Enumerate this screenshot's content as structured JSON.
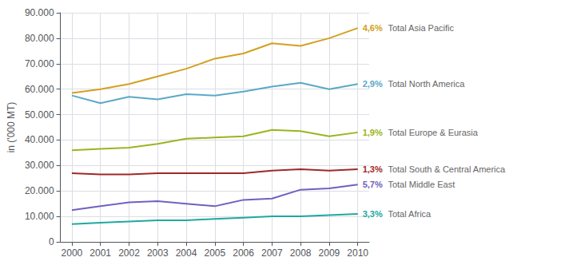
{
  "chart_data": {
    "type": "line",
    "x": [
      2000,
      2001,
      2002,
      2003,
      2004,
      2005,
      2006,
      2007,
      2008,
      2009,
      2010
    ],
    "series": [
      {
        "name": "Total Asia Pacific",
        "color": "#d4a020",
        "annotation": "4,6%",
        "values": [
          58500,
          60000,
          62000,
          65000,
          68000,
          72000,
          74000,
          78000,
          77000,
          80000,
          84000
        ]
      },
      {
        "name": "Total North America",
        "color": "#5ba8c8",
        "annotation": "2,9%",
        "values": [
          57500,
          54500,
          57000,
          56000,
          58000,
          57500,
          59000,
          61000,
          62500,
          60000,
          62000
        ]
      },
      {
        "name": "Total Europe & Eurasia",
        "color": "#9ab520",
        "annotation": "1,9%",
        "values": [
          36000,
          36500,
          37000,
          38500,
          40500,
          41000,
          41500,
          44000,
          43500,
          41500,
          43000
        ]
      },
      {
        "name": "Total South & Central America",
        "color": "#a02828",
        "annotation": "1,3%",
        "values": [
          27000,
          26500,
          26500,
          27000,
          27000,
          27000,
          27000,
          28000,
          28500,
          28000,
          28500
        ]
      },
      {
        "name": "Total Middle East",
        "color": "#7060c0",
        "annotation": "5,7%",
        "values": [
          12500,
          14000,
          15500,
          16000,
          15000,
          14000,
          16500,
          17000,
          20500,
          21000,
          22500
        ]
      },
      {
        "name": "Total Africa",
        "color": "#20a8a0",
        "annotation": "3,3%",
        "values": [
          7000,
          7500,
          8000,
          8500,
          8500,
          9000,
          9500,
          10000,
          10000,
          10500,
          11000
        ]
      }
    ],
    "ylabel": "in ('000 MT)",
    "xlim": [
      1999.6,
      2010.4
    ],
    "xticks": [
      2000,
      2001,
      2002,
      2003,
      2004,
      2005,
      2006,
      2007,
      2008,
      2009,
      2010
    ],
    "ylim": [
      0,
      90000
    ],
    "yticks": [
      {
        "value": 0,
        "label": "0"
      },
      {
        "value": 10000,
        "label": "10.000"
      },
      {
        "value": 20000,
        "label": "20.000"
      },
      {
        "value": 30000,
        "label": "30.000"
      },
      {
        "value": 40000,
        "label": "40.000"
      },
      {
        "value": 50000,
        "label": "50.000"
      },
      {
        "value": 60000,
        "label": "60.000"
      },
      {
        "value": 70000,
        "label": "70.000"
      },
      {
        "value": 80000,
        "label": "80.000"
      },
      {
        "value": 90000,
        "label": "90.000"
      }
    ],
    "grid": true
  }
}
